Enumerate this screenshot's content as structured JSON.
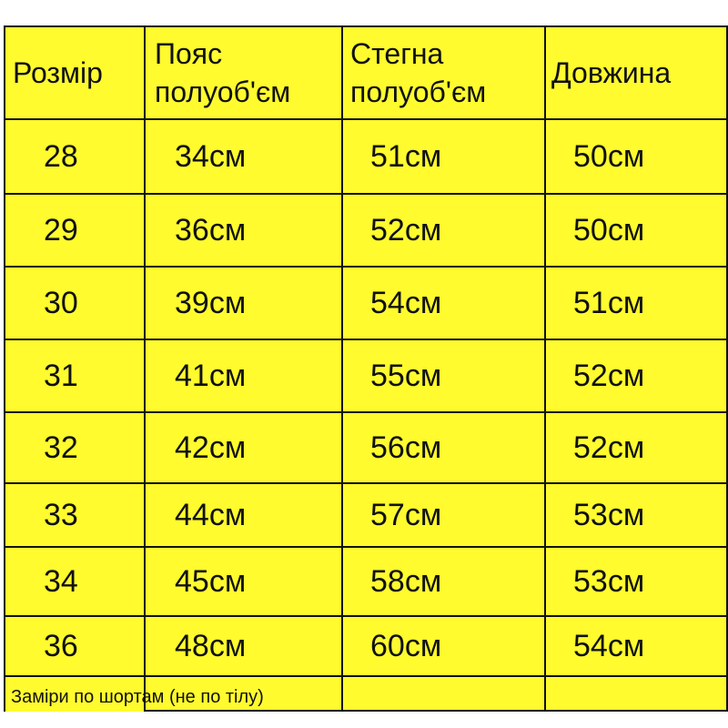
{
  "table": {
    "header": [
      "Розмір",
      "Пояс полуоб'єм",
      "Стегна полуоб'єм",
      "Довжина"
    ],
    "rows": [
      [
        "28",
        "34см",
        "51см",
        "50см"
      ],
      [
        "29",
        "36см",
        "52см",
        "50см"
      ],
      [
        "30",
        "39см",
        "54см",
        "51см"
      ],
      [
        "31",
        "41см",
        "55см",
        "52см"
      ],
      [
        "32",
        "42см",
        "56см",
        "52см"
      ],
      [
        "33",
        "44см",
        "57см",
        "53см"
      ],
      [
        "34",
        "45см",
        "58см",
        "53см"
      ],
      [
        "36",
        "48см",
        "60см",
        "54см"
      ]
    ],
    "footer": "Заміри по шортам (не по тілу)"
  }
}
